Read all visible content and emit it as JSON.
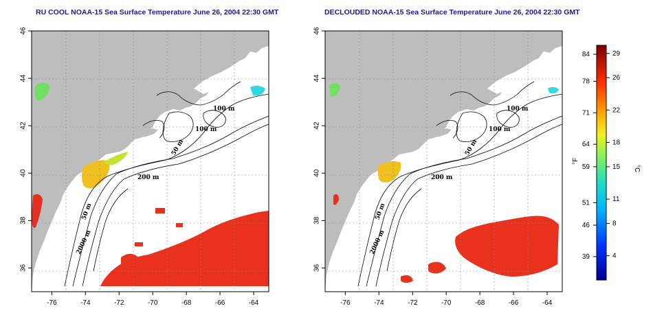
{
  "panels": [
    {
      "title": "RU COOL NOAA-15 Sea Surface Temperature June 26, 2004 22:30 GMT",
      "contour_labels": [
        "100 m",
        "100 m",
        "50 m",
        "200 m",
        "50 m",
        "2000 m"
      ]
    },
    {
      "title": "DECLOUDED NOAA-15 Sea Surface Temperature June 26, 2004 22:30 GMT",
      "contour_labels": [
        "100 m",
        "100 m",
        "50 m",
        "200 m",
        "50 m",
        "2000 m"
      ]
    }
  ],
  "axes": {
    "lon_ticks": [
      "-76",
      "-74",
      "-72",
      "-70",
      "-68",
      "-66",
      "-64"
    ],
    "lat_ticks": [
      "36",
      "38",
      "40",
      "42",
      "44",
      "46"
    ],
    "lon_range": [
      -77.2,
      -63.1
    ],
    "lat_range": [
      35.0,
      46.0
    ]
  },
  "colorbar": {
    "f_ticks": [
      "84",
      "78",
      "71",
      "64",
      "59",
      "51",
      "46",
      "39"
    ],
    "c_ticks": [
      "29",
      "26",
      "22",
      "18",
      "15",
      "11",
      "8",
      "4"
    ],
    "f_label": "°F",
    "c_label": "°C",
    "c_range": [
      1,
      30
    ]
  },
  "colors": {
    "land": "#bdbdbd",
    "ocean": "#ffffff",
    "warm": "#e8321e",
    "frame": "#000000"
  }
}
